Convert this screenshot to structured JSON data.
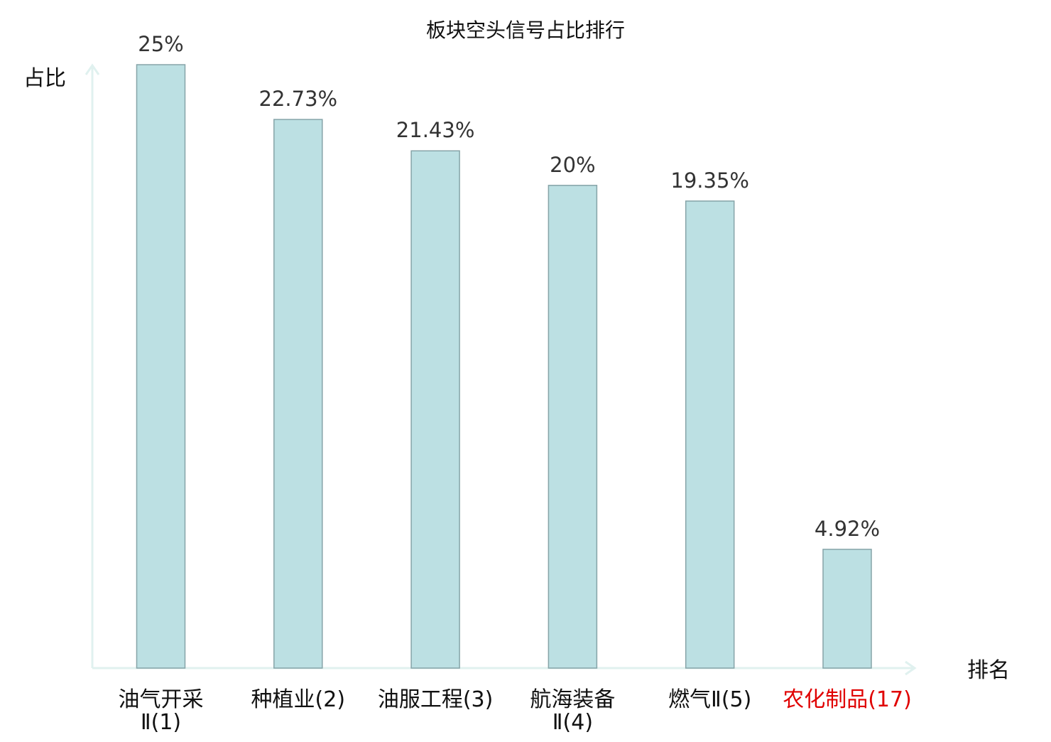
{
  "chart_data": {
    "type": "bar",
    "title": "板块空头信号占比排行",
    "xlabel": "排名",
    "ylabel": "占比",
    "categories": [
      [
        "油气开采",
        "Ⅱ(1)"
      ],
      [
        "种植业(2)"
      ],
      [
        "油服工程(3)"
      ],
      [
        "航海装备",
        "Ⅱ(4)"
      ],
      [
        "燃气Ⅱ(5)"
      ],
      [
        "农化制品(17)"
      ]
    ],
    "values": [
      25,
      22.73,
      21.43,
      20,
      19.35,
      4.92
    ],
    "value_labels": [
      "25%",
      "22.73%",
      "21.43%",
      "20%",
      "19.35%",
      "4.92%"
    ],
    "highlight_index": 5,
    "ylim": [
      0,
      25
    ],
    "grid": false,
    "colors": {
      "bar_fill": "#bce0e3",
      "bar_stroke": "#86a4a8",
      "axis": "#e0f1ef",
      "label_text": "#333333",
      "category_text": "#111111",
      "highlight_text": "#e00000"
    }
  }
}
